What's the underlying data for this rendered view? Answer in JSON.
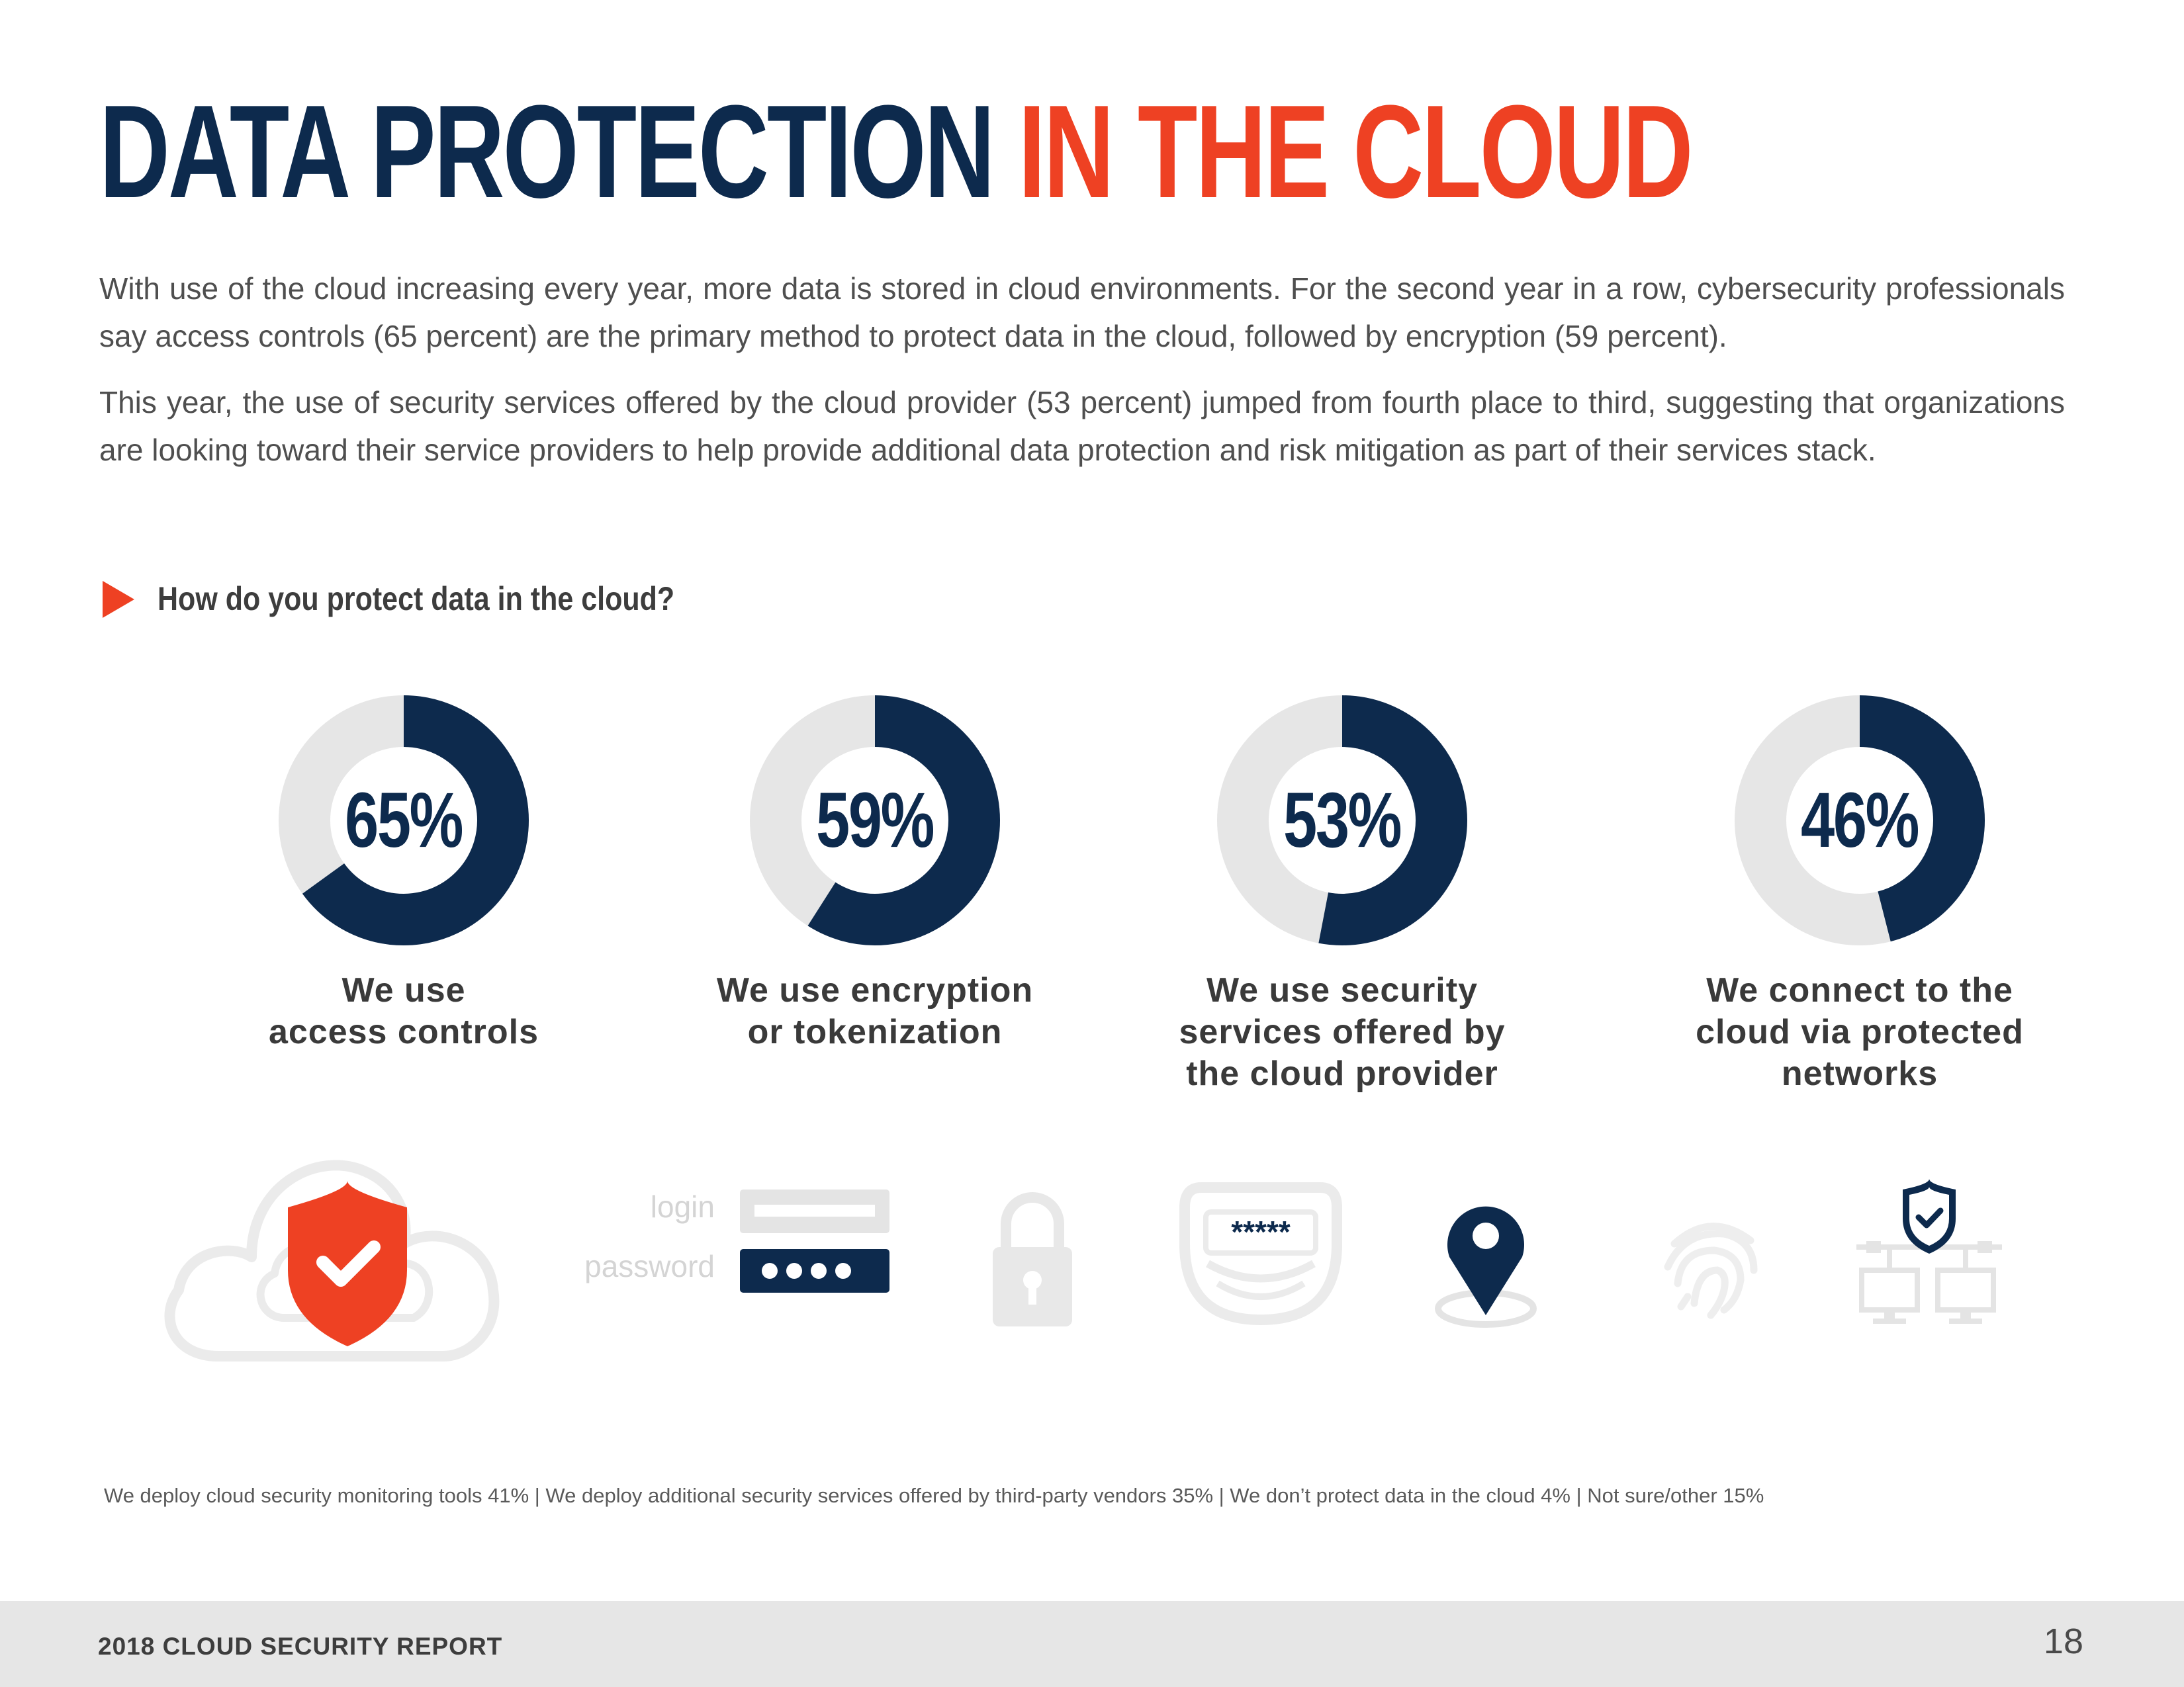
{
  "header": {
    "title_part1": "DATA PROTECTION",
    "title_part2": "IN THE CLOUD"
  },
  "intro": {
    "paragraph1": "With use of the cloud increasing every year, more data is stored in cloud environments. For the second year in a row, cybersecurity professionals say access controls (65 percent) are the  primary method to protect data in the cloud, followed by encryption (59 percent).",
    "paragraph2": "This year, the use of security services offered by the cloud provider (53 percent) jumped from fourth place to third, suggesting that organizations are looking toward their service providers to help provide additional data protection and risk mitigation as part of their services stack."
  },
  "question": "How do you protect data in the cloud?",
  "colors": {
    "navy": "#0d2a4d",
    "orange": "#ee4123",
    "track": "#e6e6e6"
  },
  "chart_data": {
    "type": "pie",
    "categories": [
      "We use access controls",
      "We use encryption or tokenization",
      "We use security services offered by the cloud provider",
      "We connect to the cloud via protected networks"
    ],
    "values": [
      65,
      59,
      53,
      46
    ],
    "unit": "%"
  },
  "donuts": [
    {
      "value_label": "65%",
      "caption": "We use\naccess controls"
    },
    {
      "value_label": "59%",
      "caption": "We use encryption\nor tokenization"
    },
    {
      "value_label": "53%",
      "caption": "We use security\nservices offered by\nthe cloud provider"
    },
    {
      "value_label": "46%",
      "caption": "We connect to the\ncloud via protected\nnetworks"
    }
  ],
  "icons": {
    "login_label": "login",
    "password_label": "password",
    "masked_password": "*****",
    "names": [
      "cloud-shield-icon",
      "login-form-icon",
      "padlock-icon",
      "password-field-icon",
      "location-pin-icon",
      "fingerprint-icon",
      "network-shield-icon"
    ]
  },
  "footnote": "We deploy cloud security monitoring tools 41%  |  We deploy additional security services offered by third-party vendors 35%  |  We don’t protect data in the cloud 4%  |  Not sure/other 15%",
  "footer": {
    "report_title": "2018 CLOUD SECURITY REPORT",
    "page_number": "18"
  }
}
